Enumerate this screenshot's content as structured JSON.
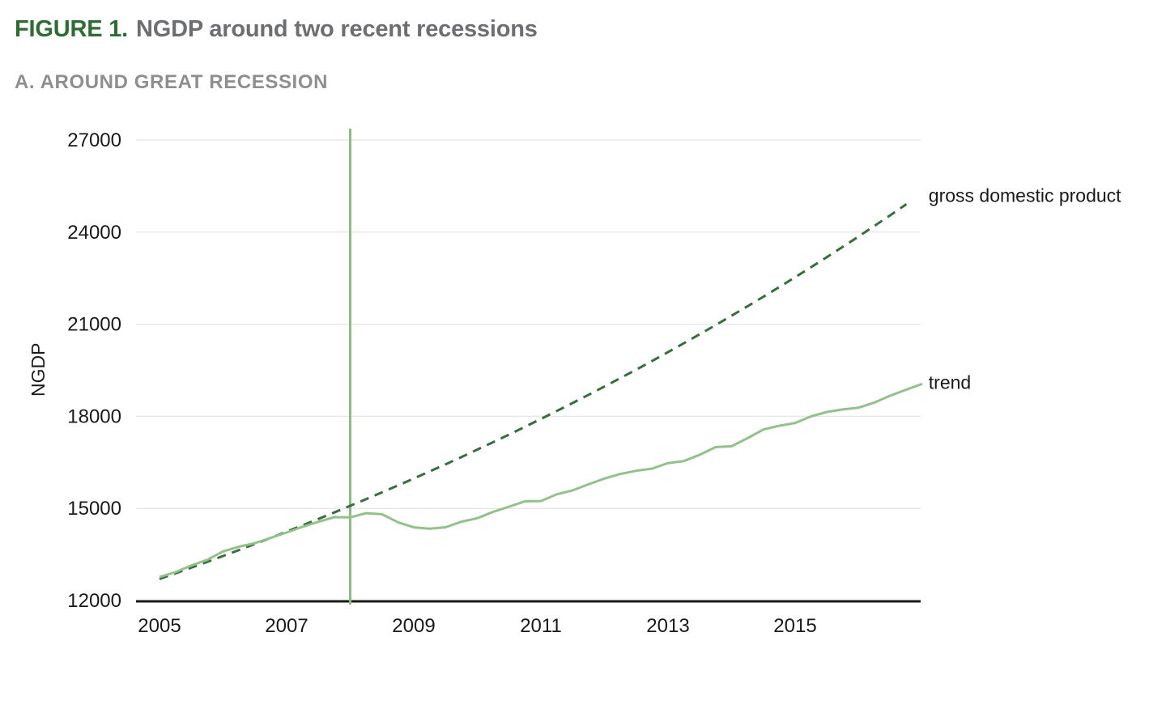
{
  "header": {
    "figure_label": "FIGURE 1.",
    "title": "NGDP around two recent recessions",
    "panel_label": "A. AROUND GREAT RECESSION"
  },
  "colors": {
    "figure_label": "#2e6b35",
    "title_text": "#6d6e71",
    "subtitle": "#8d8e90",
    "grid": "#e8e8e8",
    "axis": "#1a1a1a",
    "text": "#1a1a1a",
    "event_line": "#8cbb84",
    "gdp_line": "#35703c",
    "trend_line": "#93c18b"
  },
  "chart_data": {
    "type": "line",
    "title": "FIGURE 1. NGDP around two recent recessions",
    "panel_label": "A. AROUND GREAT RECESSION",
    "xlabel": "",
    "ylabel": "NGDP",
    "ylim": [
      12000,
      27000
    ],
    "xlim": [
      2004.65,
      2017.05
    ],
    "grid": "horizontal",
    "legend_position": "right-of-line-ends",
    "yticks": [
      12000,
      15000,
      18000,
      21000,
      24000,
      27000
    ],
    "xticks": [
      2005,
      2007,
      2009,
      2011,
      2013,
      2015
    ],
    "event_line": {
      "x": 2008,
      "color": "#8cbb84",
      "description": "vertical line at start of Great Recession"
    },
    "series": [
      {
        "name": "gross domestic product",
        "style": "dashed",
        "color": "#35703c",
        "x_start": 2005.0,
        "x_step": 0.25,
        "values": [
          12700,
          12883,
          13069,
          13258,
          13449,
          13643,
          13840,
          14040,
          14243,
          14448,
          14657,
          14868,
          15084,
          15301,
          15522,
          15746,
          15974,
          16204,
          16438,
          16675,
          16916,
          17160,
          17408,
          17659,
          17914,
          18173,
          18435,
          18701,
          18971,
          19245,
          19522,
          19804,
          20091,
          20381,
          20675,
          20973,
          21276,
          21583,
          21895,
          22211,
          22531,
          22857,
          23187,
          23522,
          23861,
          24206,
          24555,
          24909
        ]
      },
      {
        "name": "trend",
        "style": "solid",
        "color": "#93c18b",
        "x_start": 2005.0,
        "x_step": 0.25,
        "values": [
          12767,
          12922,
          13142,
          13324,
          13600,
          13754,
          13870,
          14040,
          14215,
          14402,
          14564,
          14715,
          14707,
          14845,
          14810,
          14550,
          14384,
          14340,
          14385,
          14567,
          14681,
          14889,
          15058,
          15232,
          15239,
          15460,
          15587,
          15785,
          15973,
          16122,
          16227,
          16298,
          16475,
          16541,
          16749,
          16999,
          17025,
          17286,
          17569,
          17692,
          17784,
          17998,
          18142,
          18223,
          18282,
          18450,
          18675,
          18869,
          19058
        ]
      }
    ],
    "annotations": [
      {
        "text": "gross domestic product",
        "x": 2017.1,
        "y": 25200
      },
      {
        "text": "trend",
        "x": 2017.1,
        "y": 19100
      }
    ]
  }
}
